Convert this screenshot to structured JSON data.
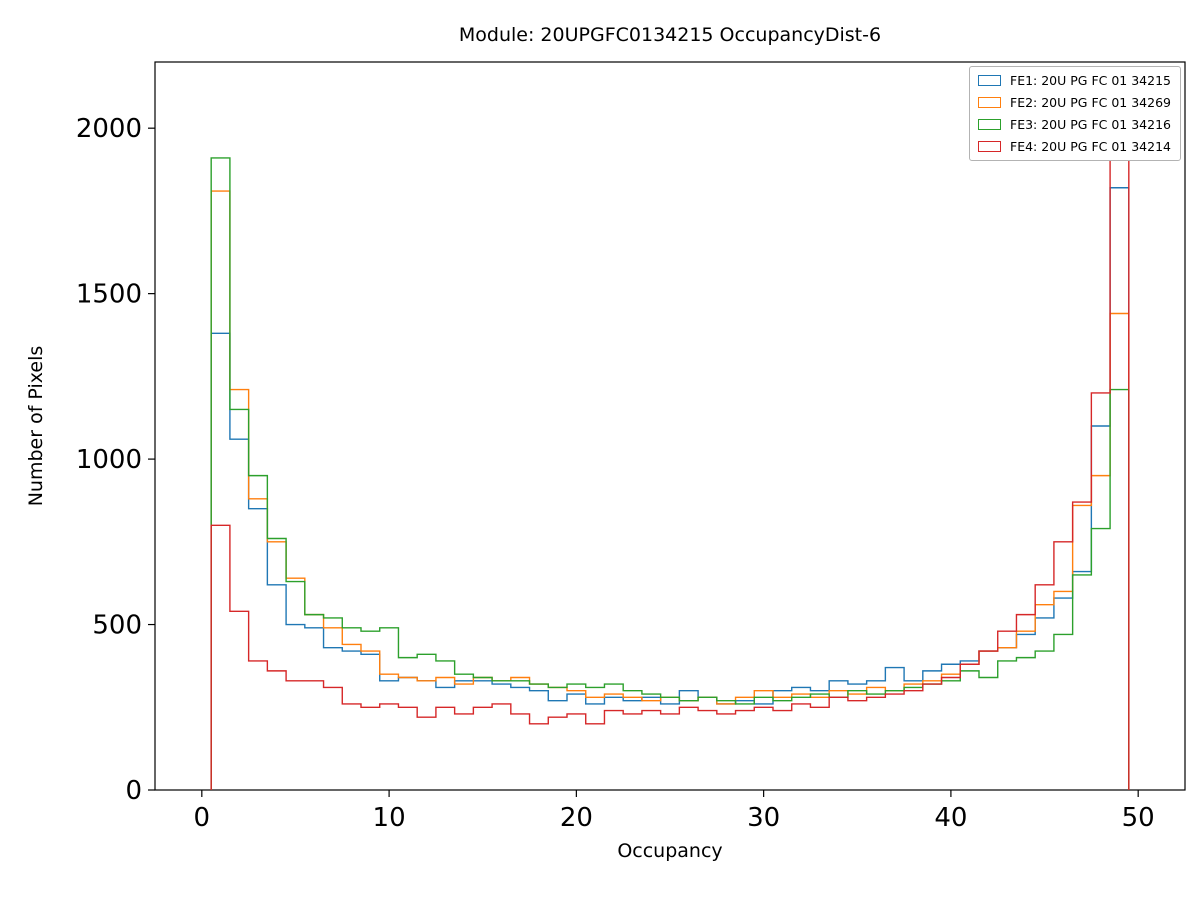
{
  "figure_title": "Module: 20UPGFC0134215 OccupancyDist-6",
  "chart_data": {
    "type": "line",
    "subtype": "step-histogram",
    "title": "Module: 20UPGFC0134215 OccupancyDist-6",
    "xlabel": "Occupancy",
    "ylabel": "Number of Pixels",
    "xlim": [
      -2.5,
      52.5
    ],
    "ylim": [
      0,
      2200
    ],
    "xticks": [
      0,
      10,
      20,
      30,
      40,
      50
    ],
    "yticks": [
      0,
      500,
      1000,
      1500,
      2000
    ],
    "grid": false,
    "legend_position": "upper right",
    "bin_edges": [
      0.5,
      1.5,
      2.5,
      3.5,
      4.5,
      5.5,
      6.5,
      7.5,
      8.5,
      9.5,
      10.5,
      11.5,
      12.5,
      13.5,
      14.5,
      15.5,
      16.5,
      17.5,
      18.5,
      19.5,
      20.5,
      21.5,
      22.5,
      23.5,
      24.5,
      25.5,
      26.5,
      27.5,
      28.5,
      29.5,
      30.5,
      31.5,
      32.5,
      33.5,
      34.5,
      35.5,
      36.5,
      37.5,
      38.5,
      39.5,
      40.5,
      41.5,
      42.5,
      43.5,
      44.5,
      45.5,
      46.5,
      47.5,
      48.5,
      49.5
    ],
    "series": [
      {
        "name": "FE1: 20U PG FC 01 34215",
        "color": "#1f77b4",
        "values": [
          1380,
          1060,
          850,
          620,
          500,
          490,
          430,
          420,
          410,
          330,
          340,
          330,
          310,
          330,
          330,
          320,
          310,
          300,
          270,
          290,
          260,
          280,
          270,
          280,
          260,
          300,
          280,
          260,
          270,
          260,
          300,
          310,
          300,
          330,
          320,
          330,
          370,
          330,
          360,
          380,
          390,
          420,
          430,
          470,
          520,
          580,
          660,
          1100,
          1820
        ]
      },
      {
        "name": "FE2: 20U PG FC 01 34269",
        "color": "#ff7f0e",
        "values": [
          1810,
          1210,
          880,
          750,
          640,
          530,
          490,
          440,
          420,
          350,
          340,
          330,
          340,
          320,
          340,
          330,
          340,
          320,
          310,
          300,
          280,
          290,
          280,
          270,
          280,
          270,
          280,
          260,
          280,
          300,
          280,
          290,
          280,
          300,
          290,
          310,
          300,
          320,
          330,
          350,
          380,
          420,
          430,
          480,
          560,
          600,
          860,
          950,
          1440
        ]
      },
      {
        "name": "FE3: 20U PG FC 01 34216",
        "color": "#2ca02c",
        "values": [
          1910,
          1150,
          950,
          760,
          630,
          530,
          520,
          490,
          480,
          490,
          400,
          410,
          390,
          350,
          340,
          330,
          330,
          320,
          310,
          320,
          310,
          320,
          300,
          290,
          280,
          270,
          280,
          270,
          260,
          280,
          270,
          280,
          290,
          280,
          300,
          290,
          300,
          310,
          320,
          330,
          360,
          340,
          390,
          400,
          420,
          470,
          650,
          790,
          1210
        ]
      },
      {
        "name": "FE4: 20U PG FC 01 34214",
        "color": "#d62728",
        "values": [
          800,
          540,
          390,
          360,
          330,
          330,
          310,
          260,
          250,
          260,
          250,
          220,
          250,
          230,
          250,
          260,
          230,
          200,
          220,
          230,
          200,
          240,
          230,
          240,
          230,
          250,
          240,
          230,
          240,
          250,
          240,
          260,
          250,
          280,
          270,
          280,
          290,
          300,
          320,
          340,
          380,
          420,
          480,
          530,
          620,
          750,
          870,
          1200,
          2150
        ]
      }
    ]
  }
}
